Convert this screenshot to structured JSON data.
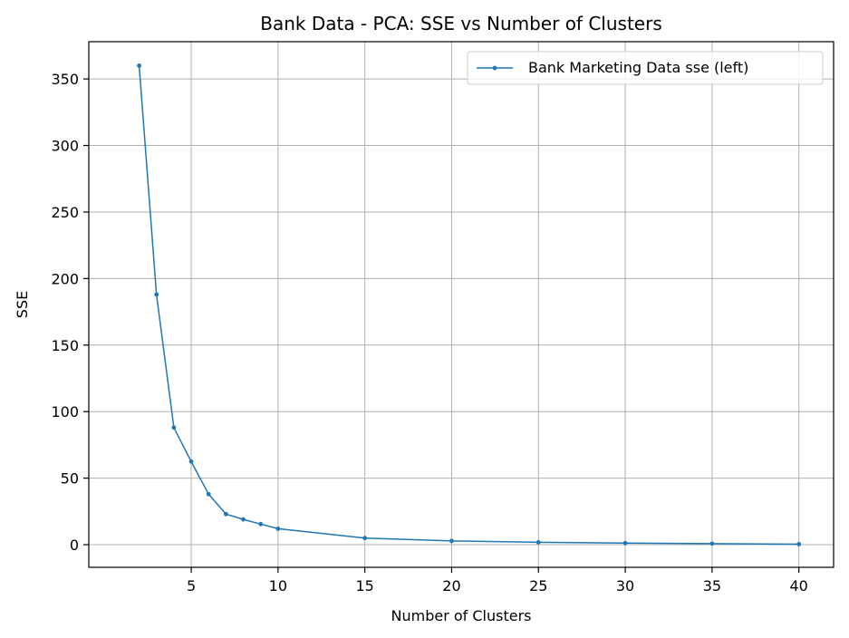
{
  "chart_data": {
    "type": "line",
    "title": "Bank Data - PCA: SSE vs Number of Clusters",
    "xlabel": "Number of Clusters",
    "ylabel": "SSE",
    "xlim": [
      -0.9,
      42.0
    ],
    "ylim": [
      -17,
      378
    ],
    "xticks": [
      5,
      10,
      15,
      20,
      25,
      30,
      35,
      40
    ],
    "yticks": [
      0,
      50,
      100,
      150,
      200,
      250,
      300,
      350
    ],
    "grid": true,
    "legend_position": "top-right",
    "series": [
      {
        "name": "Bank Marketing Data sse (left)",
        "color": "#1f77b4",
        "x": [
          2,
          3,
          4,
          5,
          6,
          7,
          8,
          9,
          10,
          15,
          20,
          25,
          30,
          35,
          40
        ],
        "values": [
          360,
          188,
          88,
          62.5,
          38,
          23,
          19,
          15.5,
          12,
          5,
          2.8,
          1.8,
          1.2,
          0.8,
          0.4
        ]
      }
    ]
  }
}
